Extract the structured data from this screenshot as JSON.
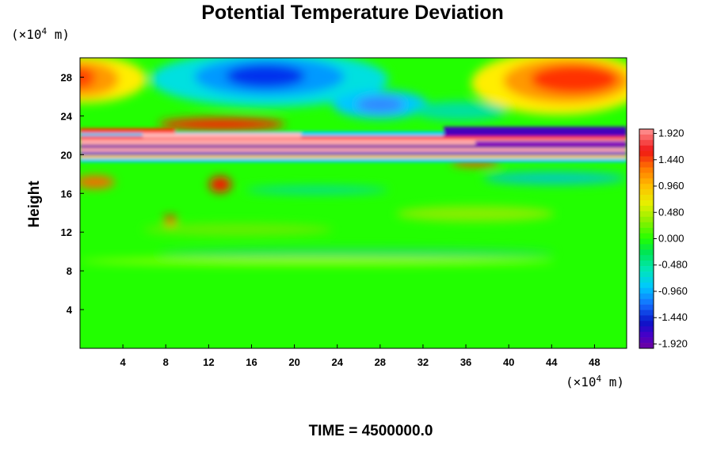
{
  "chart_data": {
    "type": "heatmap",
    "title": "Potential Temperature Deviation",
    "ylabel": "Height",
    "xlabel": "",
    "x_unit": {
      "prefix": "(×10",
      "exp": "4",
      "suffix": " m)"
    },
    "y_unit": {
      "prefix": "(×10",
      "exp": "4",
      "suffix": " m)"
    },
    "xlim": [
      0,
      51
    ],
    "ylim": [
      0,
      30
    ],
    "x_ticks": [
      4,
      8,
      12,
      16,
      20,
      24,
      28,
      32,
      36,
      40,
      44,
      48
    ],
    "y_ticks": [
      4,
      8,
      12,
      16,
      20,
      24,
      28
    ],
    "colorbar": {
      "range": [
        -2.0,
        2.0
      ],
      "labels": [
        "1.920",
        "1.440",
        "0.960",
        "0.480",
        "0.000",
        "-0.480",
        "-0.960",
        "-1.440",
        "-1.920"
      ]
    },
    "footer": "TIME = 4500000.0"
  }
}
